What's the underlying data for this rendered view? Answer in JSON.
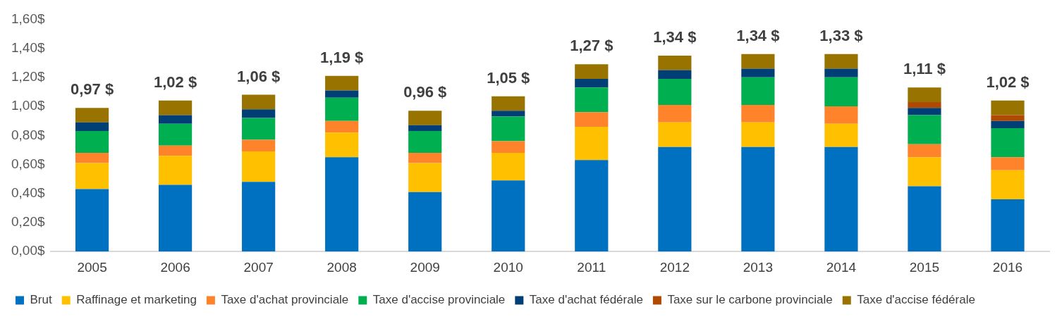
{
  "chart_data": {
    "type": "bar",
    "stacked": true,
    "categories": [
      "2005",
      "2006",
      "2007",
      "2008",
      "2009",
      "2010",
      "2011",
      "2012",
      "2013",
      "2014",
      "2015",
      "2016"
    ],
    "series": [
      {
        "name": "Brut",
        "color": "#0070c0",
        "values": [
          0.43,
          0.46,
          0.48,
          0.65,
          0.41,
          0.49,
          0.63,
          0.72,
          0.72,
          0.72,
          0.45,
          0.36
        ]
      },
      {
        "name": "Raffinage et marketing",
        "color": "#ffc000",
        "values": [
          0.18,
          0.2,
          0.21,
          0.17,
          0.2,
          0.19,
          0.23,
          0.17,
          0.17,
          0.16,
          0.2,
          0.2
        ]
      },
      {
        "name": "Taxe d'achat provinciale",
        "color": "#ff832b",
        "values": [
          0.07,
          0.07,
          0.08,
          0.08,
          0.07,
          0.08,
          0.1,
          0.12,
          0.12,
          0.12,
          0.09,
          0.09
        ]
      },
      {
        "name": "Taxe d'accise provinciale",
        "color": "#00b050",
        "values": [
          0.15,
          0.15,
          0.15,
          0.16,
          0.15,
          0.17,
          0.17,
          0.18,
          0.19,
          0.2,
          0.2,
          0.2
        ]
      },
      {
        "name": "Taxe d'achat fédérale",
        "color": "#003f75",
        "values": [
          0.06,
          0.06,
          0.06,
          0.05,
          0.04,
          0.04,
          0.06,
          0.06,
          0.06,
          0.06,
          0.05,
          0.05
        ]
      },
      {
        "name": "Taxe sur le carbone provinciale",
        "color": "#b04a00",
        "values": [
          0,
          0,
          0,
          0,
          0,
          0,
          0,
          0,
          0,
          0,
          0.04,
          0.04
        ]
      },
      {
        "name": "Taxe d'accise fédérale",
        "color": "#997300",
        "values": [
          0.1,
          0.1,
          0.1,
          0.1,
          0.1,
          0.1,
          0.1,
          0.1,
          0.1,
          0.1,
          0.1,
          0.1
        ]
      }
    ],
    "totals": [
      "0,97 $",
      "1,02 $",
      "1,06 $",
      "1,19 $",
      "0,96 $",
      "1,05 $",
      "1,27 $",
      "1,34 $",
      "1,34 $",
      "1,33 $",
      "1,11 $",
      "1,02 $"
    ],
    "ylim": [
      0,
      1.6
    ],
    "yticks": [
      {
        "value": 0,
        "label": "0,00$"
      },
      {
        "value": 0.2,
        "label": "0,20$"
      },
      {
        "value": 0.4,
        "label": "0,40$"
      },
      {
        "value": 0.6,
        "label": "0,60$"
      },
      {
        "value": 0.8,
        "label": "0,80$"
      },
      {
        "value": 1,
        "label": "1,00$"
      },
      {
        "value": 1.2,
        "label": "1,20$"
      },
      {
        "value": 1.4,
        "label": "1,40$"
      },
      {
        "value": 1.6,
        "label": "1,60$"
      }
    ],
    "grid": false,
    "legend": "bottom"
  }
}
